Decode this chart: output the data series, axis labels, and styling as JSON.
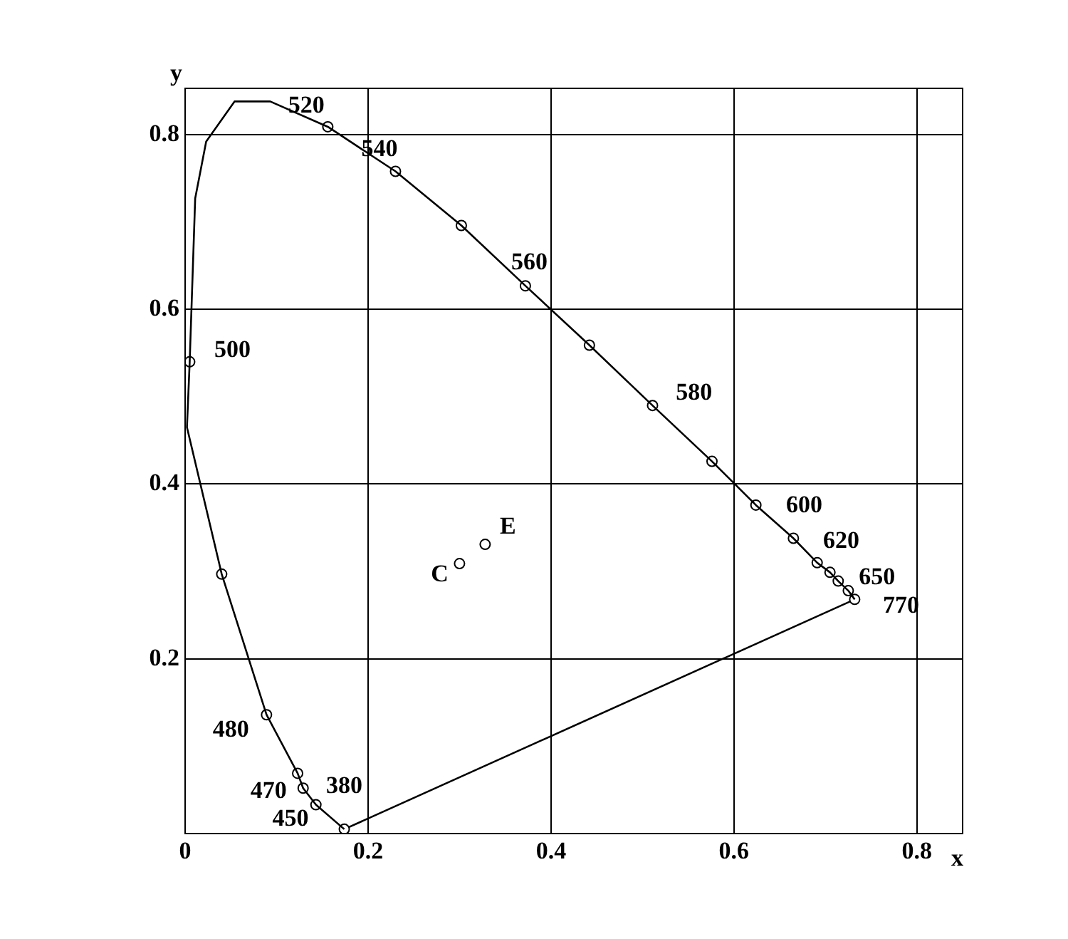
{
  "chart_data": {
    "type": "line",
    "xlabel": "x",
    "ylabel": "y",
    "xlim": [
      0,
      0.85
    ],
    "ylim": [
      0,
      0.853
    ],
    "xticks": [
      0,
      0.2,
      0.4,
      0.6,
      0.8
    ],
    "yticks": [
      0.2,
      0.4,
      0.6,
      0.8
    ],
    "grid": true,
    "legend": false,
    "marker": "circle",
    "series": [
      {
        "marker": "none",
        "color": "#000000",
        "x": [
          0.174,
          0.143,
          0.129,
          0.123,
          0.089,
          0.04,
          0.002,
          0.005,
          0.011,
          0.023,
          0.054,
          0.093,
          0.156,
          0.23,
          0.302,
          0.372,
          0.442,
          0.511,
          0.576,
          0.624,
          0.665,
          0.691,
          0.705,
          0.714,
          0.725,
          0.732
        ],
        "values": [
          0.005,
          0.033,
          0.052,
          0.069,
          0.136,
          0.297,
          0.465,
          0.54,
          0.727,
          0.792,
          0.838,
          0.838,
          0.809,
          0.758,
          0.696,
          0.627,
          0.559,
          0.49,
          0.426,
          0.376,
          0.338,
          0.31,
          0.299,
          0.289,
          0.278,
          0.268
        ]
      },
      {
        "type": "scatter",
        "color": "#000000",
        "x": [
          0.174,
          0.143,
          0.129,
          0.123,
          0.089,
          0.04,
          0.005,
          0.156,
          0.23,
          0.302,
          0.372,
          0.442,
          0.511,
          0.576,
          0.624,
          0.665,
          0.691,
          0.705,
          0.714,
          0.725,
          0.732
        ],
        "values": [
          0.005,
          0.033,
          0.052,
          0.069,
          0.136,
          0.297,
          0.54,
          0.809,
          0.758,
          0.696,
          0.627,
          0.559,
          0.49,
          0.426,
          0.376,
          0.338,
          0.31,
          0.299,
          0.289,
          0.278,
          0.268
        ]
      },
      {
        "marker": "none",
        "color": "#000000",
        "x": [
          0.174,
          0.732
        ],
        "values": [
          0.005,
          0.268
        ]
      },
      {
        "type": "scatter",
        "name": "C",
        "color": "#000000",
        "x": [
          0.3
        ],
        "values": [
          0.309
        ]
      },
      {
        "type": "scatter",
        "name": "E",
        "color": "#000000",
        "x": [
          0.328
        ],
        "values": [
          0.331
        ]
      }
    ],
    "annotations": [
      {
        "text": "520",
        "x": 0.156,
        "y": 0.809
      },
      {
        "text": "540",
        "x": 0.23,
        "y": 0.758
      },
      {
        "text": "560",
        "x": 0.372,
        "y": 0.627
      },
      {
        "text": "580",
        "x": 0.511,
        "y": 0.49
      },
      {
        "text": "600",
        "x": 0.624,
        "y": 0.376
      },
      {
        "text": "620",
        "x": 0.665,
        "y": 0.338
      },
      {
        "text": "650",
        "x": 0.705,
        "y": 0.299
      },
      {
        "text": "770",
        "x": 0.732,
        "y": 0.268
      },
      {
        "text": "500",
        "x": 0.005,
        "y": 0.54
      },
      {
        "text": "480",
        "x": 0.089,
        "y": 0.136
      },
      {
        "text": "470",
        "x": 0.123,
        "y": 0.069
      },
      {
        "text": "380",
        "x": 0.174,
        "y": 0.005
      },
      {
        "text": "450",
        "x": 0.143,
        "y": 0.033
      }
    ]
  }
}
